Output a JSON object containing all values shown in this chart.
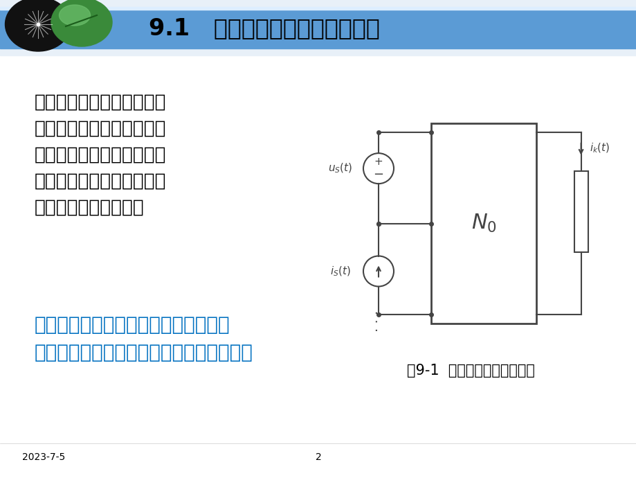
{
  "title": "9.1   正弦激励下稳态电路的响应",
  "title_bg_color": "#5B9BD5",
  "title_text_color": "#000000",
  "bg_color": "#FFFFFF",
  "main_text_lines": [
    "含有多个正弦电源激励的线",
    "性非时变电路，可以运用叠",
    "加定理进行分析。但在运用",
    "叠加定理时，需要根据不同",
    "的情况分别进行考虑。"
  ],
  "main_text_color": "#000000",
  "main_text_fontsize": 19,
  "blue_text_line1": "一种情况是各正弦电源的频率都相同；",
  "blue_text_line2": "另一种是各正弦电源的频率不相同的情况。",
  "blue_text_color": "#0070C0",
  "blue_text_fontsize": 20,
  "fig_caption": "图9-1  含有多个独立源的电路",
  "fig_caption_color": "#000000",
  "fig_caption_fontsize": 15,
  "footer_date": "2023-7-5",
  "footer_page": "2",
  "footer_fontsize": 10,
  "footer_color": "#000000",
  "circuit_color": "#444444",
  "circuit_lw": 1.5
}
